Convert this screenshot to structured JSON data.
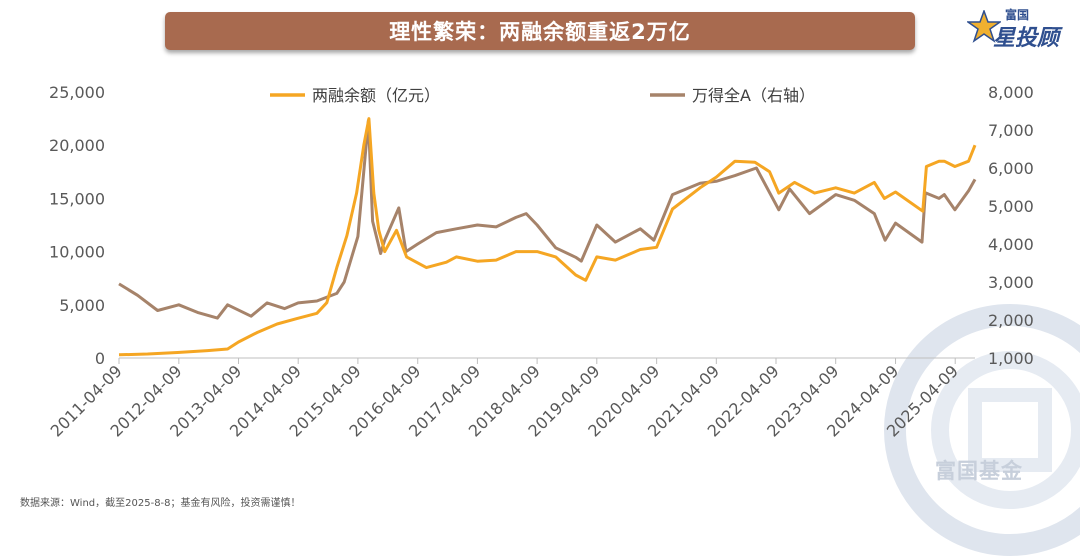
{
  "title": "理性繁荣：两融余额重返2万亿",
  "brand": {
    "top": "富国",
    "bottom": "星投顾"
  },
  "footer": "数据来源：Wind，截至2025-8-8；基金有风险，投资需谨慎！",
  "watermark": "富国基金",
  "colors": {
    "margin": "#f5a623",
    "index": "#a6836a",
    "banner": "#a86a4f"
  },
  "chart_data": {
    "type": "line",
    "title": "理性繁荣：两融余额重返2万亿",
    "x_ticks": [
      "2011-04-09",
      "2012-04-09",
      "2013-04-09",
      "2014-04-09",
      "2015-04-09",
      "2016-04-09",
      "2017-04-09",
      "2018-04-09",
      "2019-04-09",
      "2020-04-09",
      "2021-04-09",
      "2022-04-09",
      "2023-04-09",
      "2024-04-09",
      "2025-04-09"
    ],
    "x_range": [
      "2011-04-09",
      "2025-08-08"
    ],
    "y_left": {
      "ticks": [
        "0",
        "5,000",
        "10,000",
        "15,000",
        "20,000",
        "25,000"
      ],
      "range": [
        0,
        25000
      ]
    },
    "y_right": {
      "ticks": [
        "1,000",
        "2,000",
        "3,000",
        "4,000",
        "5,000",
        "6,000",
        "7,000",
        "8,000"
      ],
      "range": [
        1000,
        8000
      ]
    },
    "legend_placement": "top",
    "series": [
      {
        "name": "两融余额（亿元）",
        "axis": "left",
        "points": [
          [
            "2011-04-09",
            300
          ],
          [
            "2011-10-01",
            380
          ],
          [
            "2012-04-01",
            520
          ],
          [
            "2012-10-01",
            700
          ],
          [
            "2013-02-01",
            850
          ],
          [
            "2013-04-09",
            1500
          ],
          [
            "2013-08-01",
            2400
          ],
          [
            "2013-12-01",
            3200
          ],
          [
            "2014-04-01",
            3700
          ],
          [
            "2014-08-01",
            4200
          ],
          [
            "2014-10-01",
            5200
          ],
          [
            "2014-12-01",
            8500
          ],
          [
            "2015-02-01",
            11500
          ],
          [
            "2015-04-01",
            15500
          ],
          [
            "2015-05-15",
            20000
          ],
          [
            "2015-06-15",
            22500
          ],
          [
            "2015-07-15",
            15500
          ],
          [
            "2015-08-15",
            12000
          ],
          [
            "2015-09-20",
            10000
          ],
          [
            "2015-12-01",
            12000
          ],
          [
            "2016-02-01",
            9500
          ],
          [
            "2016-06-01",
            8500
          ],
          [
            "2016-10-01",
            9000
          ],
          [
            "2016-12-01",
            9500
          ],
          [
            "2017-04-09",
            9100
          ],
          [
            "2017-08-01",
            9200
          ],
          [
            "2017-12-01",
            10000
          ],
          [
            "2018-04-09",
            10000
          ],
          [
            "2018-08-01",
            9500
          ],
          [
            "2018-12-01",
            7800
          ],
          [
            "2019-01-31",
            7300
          ],
          [
            "2019-04-09",
            9500
          ],
          [
            "2019-08-01",
            9200
          ],
          [
            "2019-12-31",
            10200
          ],
          [
            "2020-04-09",
            10400
          ],
          [
            "2020-07-15",
            14000
          ],
          [
            "2020-12-31",
            16000
          ],
          [
            "2021-04-09",
            17000
          ],
          [
            "2021-08-01",
            18500
          ],
          [
            "2021-12-01",
            18400
          ],
          [
            "2022-03-01",
            17500
          ],
          [
            "2022-04-26",
            15500
          ],
          [
            "2022-08-01",
            16500
          ],
          [
            "2022-12-01",
            15500
          ],
          [
            "2023-04-09",
            16000
          ],
          [
            "2023-08-01",
            15500
          ],
          [
            "2023-12-01",
            16500
          ],
          [
            "2024-02-01",
            15000
          ],
          [
            "2024-04-09",
            15600
          ],
          [
            "2024-09-23",
            13800
          ],
          [
            "2024-10-15",
            18000
          ],
          [
            "2024-12-31",
            18500
          ],
          [
            "2025-02-01",
            18500
          ],
          [
            "2025-04-07",
            18000
          ],
          [
            "2025-06-30",
            18500
          ],
          [
            "2025-08-08",
            20000
          ]
        ]
      },
      {
        "name": "万得全A（右轴）",
        "axis": "right",
        "points": [
          [
            "2011-04-09",
            2950
          ],
          [
            "2011-08-01",
            2650
          ],
          [
            "2011-12-01",
            2250
          ],
          [
            "2012-04-09",
            2400
          ],
          [
            "2012-08-01",
            2200
          ],
          [
            "2012-12-01",
            2050
          ],
          [
            "2013-02-01",
            2400
          ],
          [
            "2013-06-25",
            2100
          ],
          [
            "2013-10-01",
            2450
          ],
          [
            "2014-01-15",
            2300
          ],
          [
            "2014-04-09",
            2450
          ],
          [
            "2014-08-01",
            2500
          ],
          [
            "2014-12-01",
            2700
          ],
          [
            "2015-01-15",
            3000
          ],
          [
            "2015-04-09",
            4200
          ],
          [
            "2015-06-12",
            7250
          ],
          [
            "2015-07-08",
            4600
          ],
          [
            "2015-08-26",
            3750
          ],
          [
            "2015-09-20",
            4100
          ],
          [
            "2015-12-15",
            4950
          ],
          [
            "2016-01-28",
            3800
          ],
          [
            "2016-04-09",
            4000
          ],
          [
            "2016-08-01",
            4300
          ],
          [
            "2016-12-01",
            4400
          ],
          [
            "2017-04-09",
            4500
          ],
          [
            "2017-08-01",
            4450
          ],
          [
            "2017-12-01",
            4700
          ],
          [
            "2018-02-01",
            4800
          ],
          [
            "2018-04-09",
            4500
          ],
          [
            "2018-08-01",
            3900
          ],
          [
            "2018-12-01",
            3650
          ],
          [
            "2019-01-04",
            3550
          ],
          [
            "2019-04-09",
            4500
          ],
          [
            "2019-08-01",
            4050
          ],
          [
            "2019-12-31",
            4400
          ],
          [
            "2020-03-23",
            4100
          ],
          [
            "2020-07-15",
            5300
          ],
          [
            "2020-12-31",
            5600
          ],
          [
            "2021-04-09",
            5650
          ],
          [
            "2021-08-01",
            5800
          ],
          [
            "2021-12-10",
            6000
          ],
          [
            "2022-04-26",
            4900
          ],
          [
            "2022-07-01",
            5450
          ],
          [
            "2022-10-31",
            4800
          ],
          [
            "2023-04-09",
            5300
          ],
          [
            "2023-08-01",
            5150
          ],
          [
            "2023-12-01",
            4800
          ],
          [
            "2024-02-05",
            4100
          ],
          [
            "2024-04-09",
            4550
          ],
          [
            "2024-09-18",
            4050
          ],
          [
            "2024-10-08",
            5350
          ],
          [
            "2024-12-31",
            5200
          ],
          [
            "2025-02-01",
            5300
          ],
          [
            "2025-04-07",
            4900
          ],
          [
            "2025-06-30",
            5400
          ],
          [
            "2025-08-08",
            5700
          ]
        ]
      }
    ]
  }
}
